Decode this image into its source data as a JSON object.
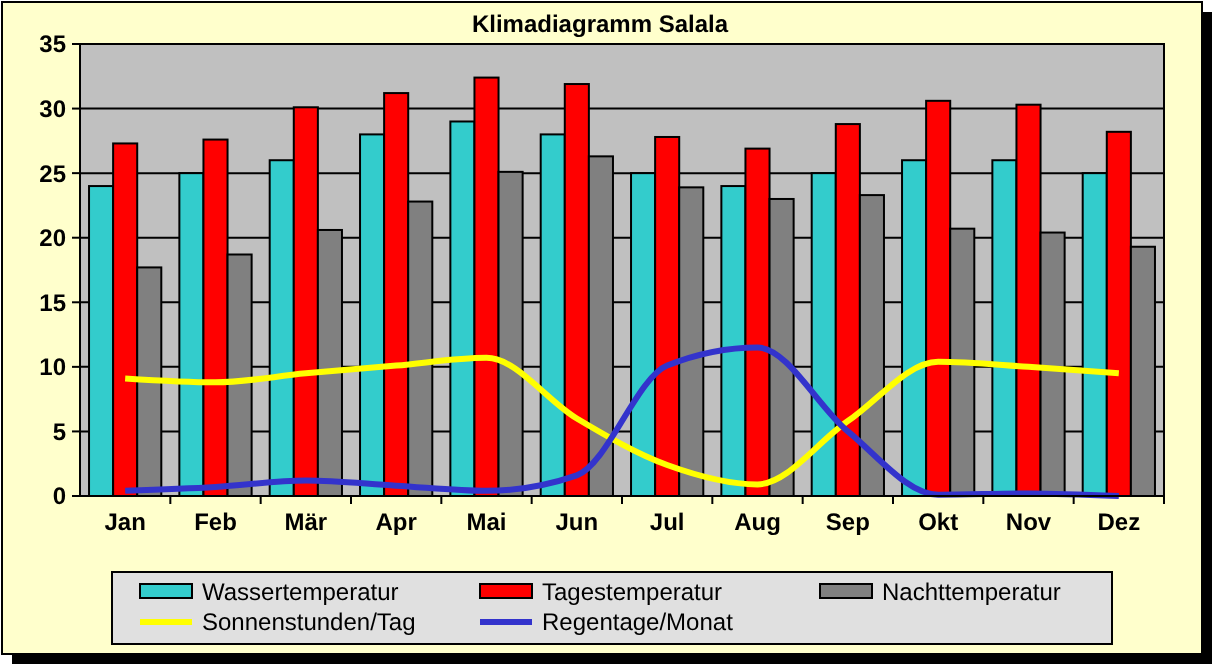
{
  "chart_data": {
    "type": "bar",
    "title": "Klimadiagramm Salala",
    "categories": [
      "Jan",
      "Feb",
      "Mär",
      "Apr",
      "Mai",
      "Jun",
      "Jul",
      "Aug",
      "Sep",
      "Okt",
      "Nov",
      "Dez"
    ],
    "series": [
      {
        "name": "Wassertemperatur",
        "color": "#33cccc",
        "values": [
          24,
          25,
          26,
          28,
          29,
          28,
          25,
          24,
          25,
          26,
          26,
          25
        ]
      },
      {
        "name": "Tagestemperatur",
        "color": "#ff0000",
        "values": [
          27.3,
          27.6,
          30.1,
          31.2,
          32.4,
          31.9,
          27.8,
          26.9,
          28.8,
          30.6,
          30.3,
          28.2
        ]
      },
      {
        "name": "Nachttemperatur",
        "color": "#808080",
        "values": [
          17.7,
          18.7,
          20.6,
          22.8,
          25.1,
          26.3,
          23.9,
          23,
          23.3,
          20.7,
          20.4,
          19.3
        ]
      },
      {
        "name": "Sonnenstunden/Tag",
        "type": "line",
        "color": "#ffff00",
        "values": [
          9.1,
          8.8,
          9.5,
          10.1,
          10.7,
          6,
          2.4,
          0.9,
          5.8,
          10.4,
          10,
          9.5
        ]
      },
      {
        "name": "Regentage/Monat",
        "type": "line",
        "color": "#3333cc",
        "values": [
          0.4,
          0.7,
          1.2,
          0.8,
          0.4,
          1.6,
          10.1,
          11.5,
          5,
          0.1,
          0.2,
          0
        ]
      }
    ],
    "ylim": [
      0,
      35
    ],
    "yticks": [
      0,
      5,
      10,
      15,
      20,
      25,
      30,
      35
    ],
    "grid": "y",
    "legend": "bottom",
    "marker": "none"
  }
}
